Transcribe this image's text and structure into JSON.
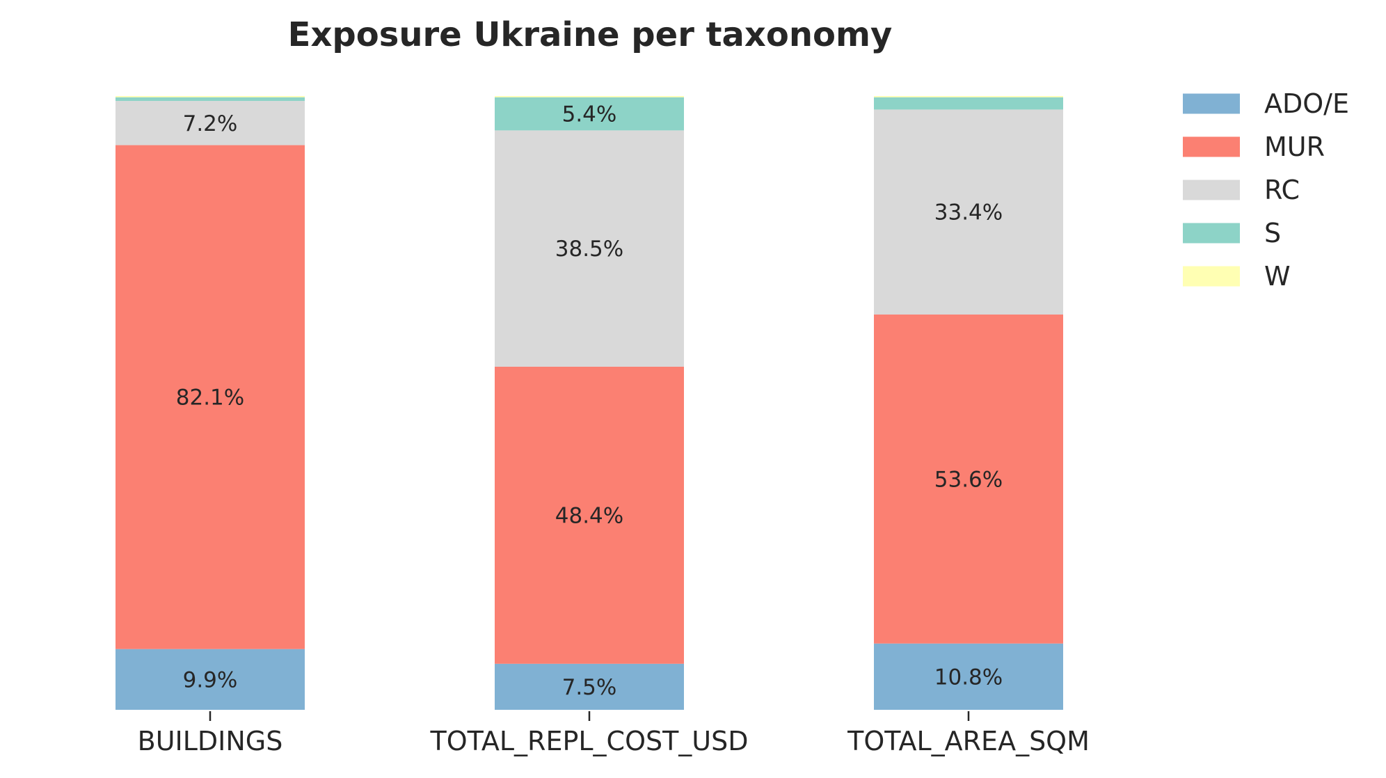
{
  "chart_data": {
    "type": "bar",
    "stacked": true,
    "normalized_to_percent": true,
    "title": "Exposure Ukraine per taxonomy",
    "xlabel": "",
    "ylabel": "",
    "ylim": [
      0,
      100
    ],
    "grid": false,
    "legend_position": "right",
    "categories": [
      "BUILDINGS",
      "TOTAL_REPL_COST_USD",
      "TOTAL_AREA_SQM"
    ],
    "series": [
      {
        "name": "ADO/E",
        "color": "#80b1d3",
        "values": [
          9.9,
          7.5,
          10.8
        ],
        "labels": [
          "9.9%",
          "7.5%",
          "10.8%"
        ]
      },
      {
        "name": "MUR",
        "color": "#fb8072",
        "values": [
          82.1,
          48.4,
          53.6
        ],
        "labels": [
          "82.1%",
          "48.4%",
          "53.6%"
        ]
      },
      {
        "name": "RC",
        "color": "#d9d9d9",
        "values": [
          7.2,
          38.5,
          33.4
        ],
        "labels": [
          "7.2%",
          "38.5%",
          "33.4%"
        ]
      },
      {
        "name": "S",
        "color": "#8dd3c7",
        "values": [
          0.6,
          5.4,
          2.0
        ],
        "labels": [
          "",
          "5.4%",
          ""
        ]
      },
      {
        "name": "W",
        "color": "#ffffb3",
        "values": [
          0.2,
          0.2,
          0.2
        ],
        "labels": [
          "",
          "",
          ""
        ]
      }
    ]
  }
}
